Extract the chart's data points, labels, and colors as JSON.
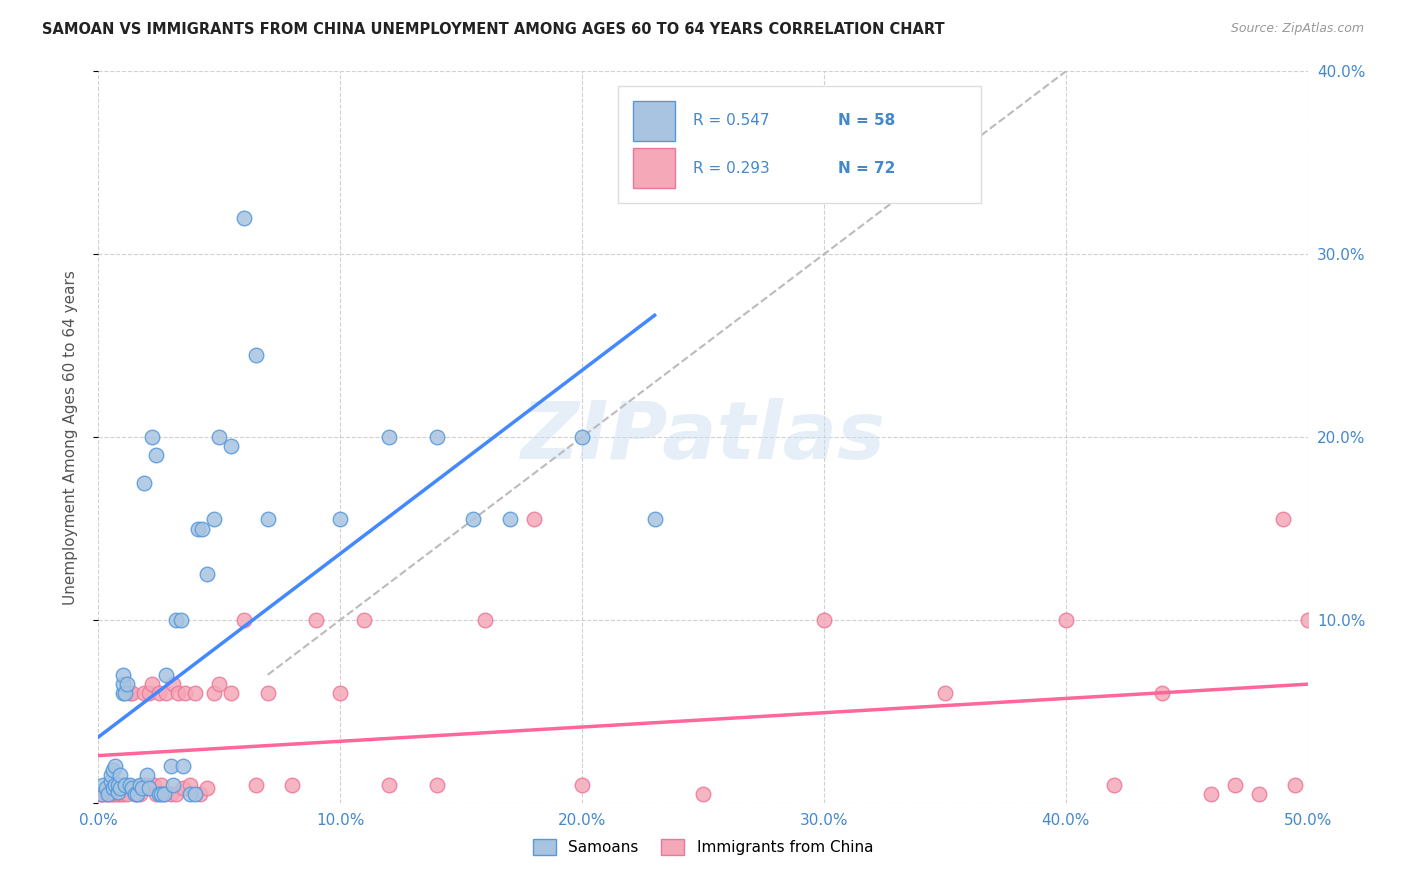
{
  "title": "SAMOAN VS IMMIGRANTS FROM CHINA UNEMPLOYMENT AMONG AGES 60 TO 64 YEARS CORRELATION CHART",
  "source": "Source: ZipAtlas.com",
  "ylabel": "Unemployment Among Ages 60 to 64 years",
  "xlim": [
    0.0,
    0.5
  ],
  "ylim": [
    0.0,
    0.4
  ],
  "xtick_vals": [
    0.0,
    0.1,
    0.2,
    0.3,
    0.4,
    0.5
  ],
  "ytick_vals": [
    0.0,
    0.1,
    0.2,
    0.3,
    0.4
  ],
  "xtick_labels": [
    "0.0%",
    "10.0%",
    "20.0%",
    "30.0%",
    "40.0%",
    "50.0%"
  ],
  "ytick_labels_right": [
    "",
    "10.0%",
    "20.0%",
    "30.0%",
    "40.0%"
  ],
  "background_color": "#ffffff",
  "grid_color": "#cccccc",
  "watermark": "ZIPatlas",
  "samoans_color": "#a8c4e0",
  "china_color": "#f4a8b8",
  "samoans_edge_color": "#5599dd",
  "china_edge_color": "#ee7799",
  "samoans_line_color": "#4488ff",
  "china_line_color": "#ff6699",
  "dashed_line_color": "#bbbbbb",
  "legend_R_samoan": "R = 0.547",
  "legend_N_samoan": "N = 58",
  "legend_R_china": "R = 0.293",
  "legend_N_china": "N = 72",
  "samoans_x": [
    0.001,
    0.002,
    0.003,
    0.004,
    0.005,
    0.005,
    0.006,
    0.006,
    0.007,
    0.007,
    0.008,
    0.008,
    0.009,
    0.009,
    0.01,
    0.01,
    0.01,
    0.011,
    0.011,
    0.012,
    0.013,
    0.014,
    0.015,
    0.016,
    0.017,
    0.018,
    0.019,
    0.02,
    0.021,
    0.022,
    0.024,
    0.025,
    0.026,
    0.027,
    0.028,
    0.03,
    0.031,
    0.032,
    0.034,
    0.035,
    0.038,
    0.04,
    0.041,
    0.043,
    0.045,
    0.048,
    0.05,
    0.055,
    0.06,
    0.065,
    0.07,
    0.1,
    0.12,
    0.14,
    0.155,
    0.17,
    0.2,
    0.23
  ],
  "samoans_y": [
    0.005,
    0.01,
    0.008,
    0.005,
    0.012,
    0.015,
    0.018,
    0.008,
    0.01,
    0.02,
    0.006,
    0.01,
    0.008,
    0.015,
    0.06,
    0.065,
    0.07,
    0.06,
    0.01,
    0.065,
    0.01,
    0.008,
    0.005,
    0.005,
    0.01,
    0.008,
    0.175,
    0.015,
    0.008,
    0.2,
    0.19,
    0.005,
    0.005,
    0.005,
    0.07,
    0.02,
    0.01,
    0.1,
    0.1,
    0.02,
    0.005,
    0.005,
    0.15,
    0.15,
    0.125,
    0.155,
    0.2,
    0.195,
    0.32,
    0.245,
    0.155,
    0.155,
    0.2,
    0.2,
    0.155,
    0.155,
    0.2,
    0.155
  ],
  "china_x": [
    0.001,
    0.002,
    0.003,
    0.004,
    0.005,
    0.005,
    0.006,
    0.006,
    0.007,
    0.007,
    0.008,
    0.008,
    0.009,
    0.009,
    0.01,
    0.01,
    0.011,
    0.012,
    0.012,
    0.013,
    0.014,
    0.015,
    0.016,
    0.017,
    0.018,
    0.019,
    0.02,
    0.021,
    0.022,
    0.023,
    0.024,
    0.025,
    0.026,
    0.027,
    0.028,
    0.03,
    0.031,
    0.032,
    0.033,
    0.035,
    0.036,
    0.038,
    0.04,
    0.042,
    0.045,
    0.048,
    0.05,
    0.055,
    0.06,
    0.065,
    0.07,
    0.08,
    0.09,
    0.1,
    0.11,
    0.12,
    0.14,
    0.16,
    0.18,
    0.2,
    0.25,
    0.3,
    0.35,
    0.4,
    0.42,
    0.44,
    0.46,
    0.47,
    0.48,
    0.49,
    0.495,
    0.5
  ],
  "china_y": [
    0.005,
    0.005,
    0.005,
    0.005,
    0.01,
    0.005,
    0.008,
    0.005,
    0.01,
    0.005,
    0.005,
    0.01,
    0.005,
    0.008,
    0.01,
    0.005,
    0.01,
    0.008,
    0.005,
    0.06,
    0.06,
    0.008,
    0.005,
    0.005,
    0.01,
    0.06,
    0.01,
    0.06,
    0.065,
    0.01,
    0.005,
    0.06,
    0.01,
    0.005,
    0.06,
    0.005,
    0.065,
    0.005,
    0.06,
    0.008,
    0.06,
    0.01,
    0.06,
    0.005,
    0.008,
    0.06,
    0.065,
    0.06,
    0.1,
    0.01,
    0.06,
    0.01,
    0.1,
    0.06,
    0.1,
    0.01,
    0.01,
    0.1,
    0.155,
    0.01,
    0.005,
    0.1,
    0.06,
    0.1,
    0.01,
    0.06,
    0.005,
    0.01,
    0.005,
    0.155,
    0.01,
    0.1
  ]
}
